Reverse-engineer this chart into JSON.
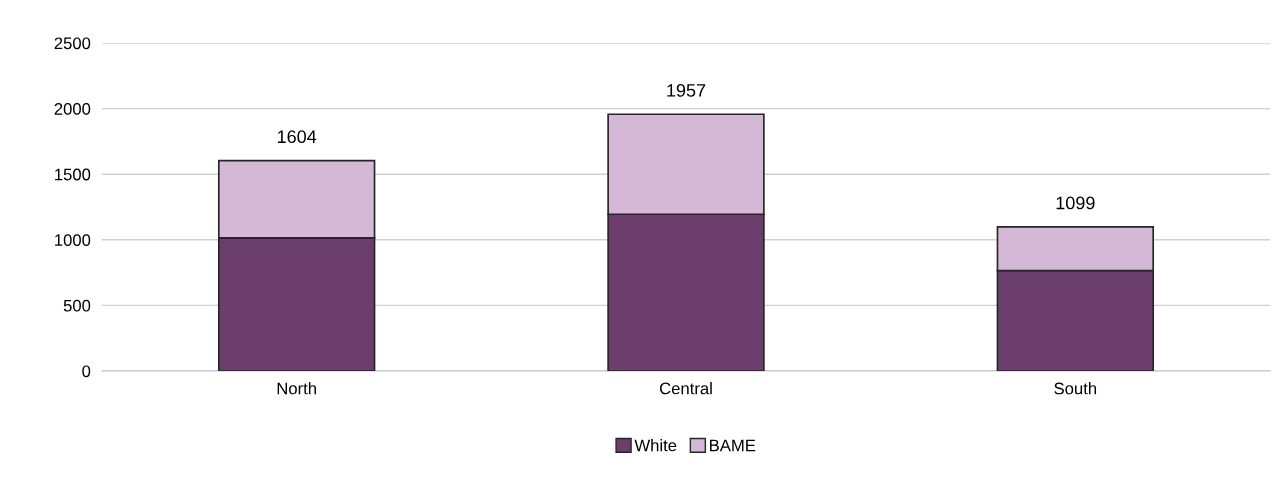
{
  "chart_data": {
    "type": "bar",
    "stacked": true,
    "categories": [
      "North",
      "Central",
      "South"
    ],
    "series": [
      {
        "name": "White",
        "color": "#6b3e6e",
        "values": [
          1015,
          1195,
          765
        ]
      },
      {
        "name": "BAME",
        "color": "#d5b7d6",
        "values": [
          589,
          762,
          334
        ]
      }
    ],
    "totals": [
      "1604",
      "1957",
      "1099"
    ],
    "ylim": [
      0,
      2500
    ],
    "yticks": [
      0,
      500,
      1000,
      1500,
      2000,
      2500
    ],
    "grid": "y",
    "legend": "bottom"
  }
}
